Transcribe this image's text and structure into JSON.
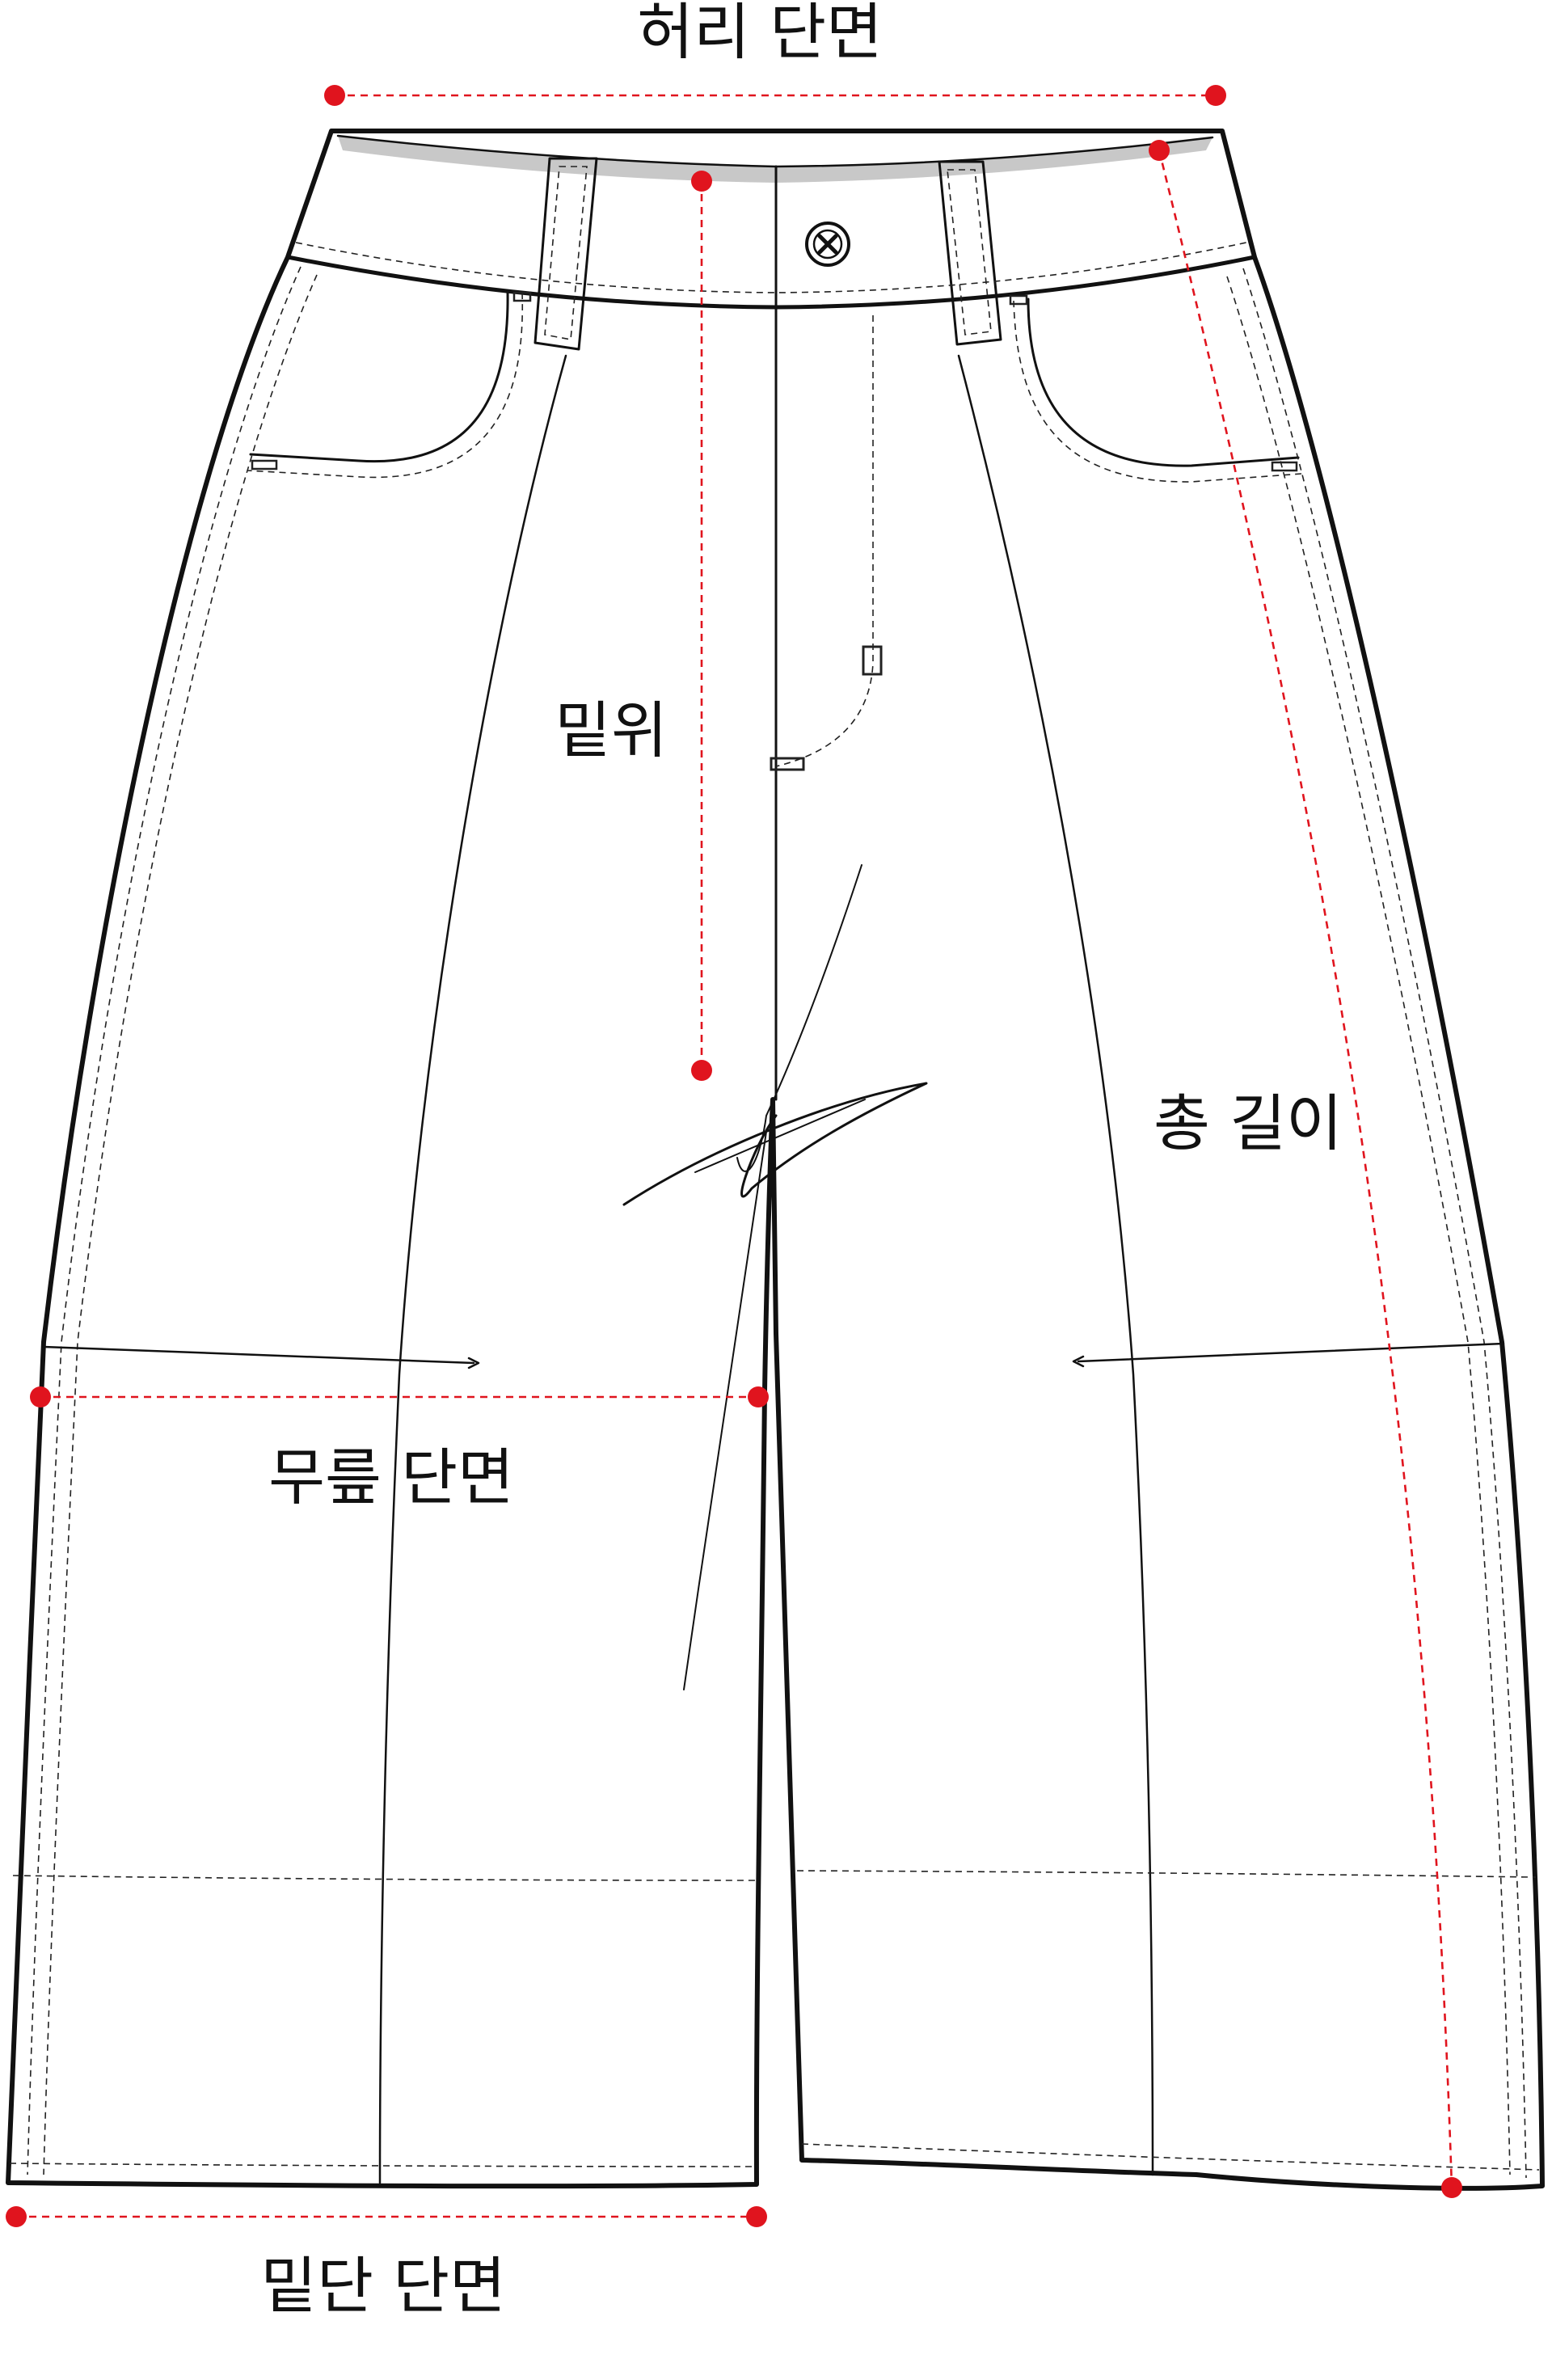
{
  "labels": {
    "waist": "허리 단면",
    "rise": "밑위",
    "total_length": "총 길이",
    "thigh": "무릎 단면",
    "hem": "밑단 단면"
  },
  "colors": {
    "measure": "#e0141e",
    "outline": "#111111",
    "waistband_inner": "#c8c8c8"
  },
  "icons": {
    "button": "button-icon"
  }
}
